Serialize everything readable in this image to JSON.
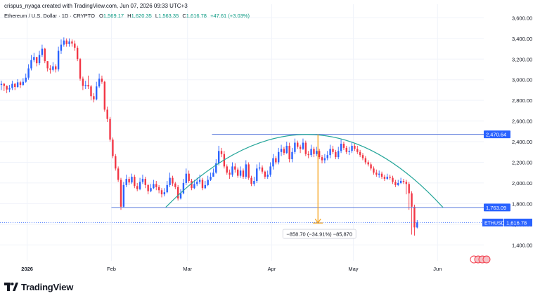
{
  "header": {
    "credit": "crispus_nyaga created with TradingView.com, Jun 07, 2026 09:33 UTC+3",
    "instrument": "Ethereum / U.S. Dollar · 1D · CRYPTO",
    "ohlc": {
      "o_label": "O",
      "open": "1,569.17",
      "h_label": "H",
      "high": "1,620.35",
      "l_label": "L",
      "low": "1,563.35",
      "c_label": "C",
      "close": "1,616.78",
      "change": "+47.61 (+3.03%)"
    }
  },
  "brand": {
    "name": "TradingView"
  },
  "colors": {
    "up": "#2962ff",
    "down": "#f23645",
    "arc": "#26a69a",
    "hline": "#5b7bdc",
    "measure": "#f6a623",
    "ticker_bg": "#2962ff"
  },
  "chart_data": {
    "type": "candlestick",
    "symbol": "ETHUSD",
    "ylim": [
      1300,
      3650
    ],
    "y_ticks": [
      1400,
      1600,
      1800,
      2000,
      2200,
      2400,
      2600,
      2800,
      3000,
      3200,
      3400,
      3600
    ],
    "y_tick_labels": [
      "1,400.00",
      "1,600.00",
      "1,800.00",
      "2,000.00",
      "2,200.00",
      "2,400.00",
      "2,600.00",
      "2,800.00",
      "3,000.00",
      "3,200.00",
      "3,400.00",
      "3,600.00"
    ],
    "x_labels": [
      {
        "date": "2026-01-01",
        "label": "2026"
      },
      {
        "date": "2026-02-01",
        "label": "Feb"
      },
      {
        "date": "2026-03-01",
        "label": "Mar"
      },
      {
        "date": "2026-04-01",
        "label": "Apr"
      },
      {
        "date": "2026-05-01",
        "label": "May"
      },
      {
        "date": "2026-06-01",
        "label": "Jun"
      }
    ],
    "x_range": [
      "2025-12-22",
      "2026-06-18"
    ],
    "first_date": "2025-12-22",
    "closes": [
      2960,
      2940,
      2905,
      2920,
      2960,
      2930,
      2975,
      2950,
      2980,
      3020,
      3110,
      3190,
      3220,
      3160,
      3240,
      3300,
      3180,
      3110,
      3095,
      3130,
      3100,
      3280,
      3340,
      3380,
      3345,
      3370,
      3350,
      3310,
      3200,
      3010,
      2940,
      2950,
      2935,
      2840,
      2810,
      2935,
      3010,
      2980,
      2710,
      2620,
      2420,
      2260,
      2140,
      2030,
      1770,
      1980,
      2040,
      2005,
      2060,
      1970,
      1940,
      2010,
      2040,
      1980,
      1920,
      1950,
      1990,
      1960,
      1930,
      1890,
      1910,
      1980,
      2050,
      1995,
      1960,
      1850,
      1900,
      2000,
      2090,
      2020,
      1950,
      1990,
      2010,
      2030,
      1950,
      1980,
      2030,
      2060,
      2100,
      2190,
      2310,
      2280,
      2160,
      2100,
      2080,
      2160,
      2130,
      2070,
      2120,
      2060,
      2180,
      2050,
      1990,
      2020,
      2140,
      2150,
      2110,
      2060,
      2080,
      2160,
      2240,
      2200,
      2300,
      2330,
      2290,
      2360,
      2230,
      2300,
      2390,
      2350,
      2330,
      2390,
      2280,
      2270,
      2330,
      2280,
      2310,
      2250,
      2220,
      2240,
      2270,
      2330,
      2300,
      2250,
      2310,
      2380,
      2340,
      2300,
      2310,
      2360,
      2330,
      2300,
      2270,
      2240,
      2200,
      2180,
      2140,
      2100,
      2080,
      2090,
      2060,
      2040,
      2060,
      2050,
      2010,
      1980,
      2000,
      2020,
      2010,
      1990,
      1900,
      1770,
      1569,
      1617
    ],
    "highs": [
      2990,
      2970,
      2945,
      2950,
      2990,
      2970,
      3005,
      2990,
      3015,
      3060,
      3150,
      3240,
      3260,
      3220,
      3280,
      3340,
      3310,
      3180,
      3140,
      3170,
      3150,
      3320,
      3390,
      3410,
      3400,
      3400,
      3390,
      3380,
      3330,
      3210,
      3030,
      2990,
      3040,
      2950,
      2870,
      2980,
      3060,
      3040,
      2990,
      2740,
      2640,
      2440,
      2280,
      2160,
      2050,
      2010,
      2080,
      2060,
      2090,
      2080,
      2000,
      2050,
      2080,
      2060,
      1990,
      1990,
      2030,
      2020,
      1980,
      1950,
      1950,
      2020,
      2100,
      2070,
      2010,
      1980,
      1940,
      2040,
      2140,
      2120,
      2040,
      2030,
      2050,
      2080,
      2050,
      2020,
      2070,
      2100,
      2140,
      2230,
      2360,
      2340,
      2310,
      2180,
      2130,
      2200,
      2190,
      2150,
      2160,
      2140,
      2220,
      2200,
      2070,
      2060,
      2180,
      2200,
      2170,
      2120,
      2120,
      2200,
      2280,
      2260,
      2340,
      2370,
      2350,
      2400,
      2390,
      2340,
      2430,
      2410,
      2370,
      2430,
      2410,
      2310,
      2370,
      2350,
      2350,
      2330,
      2270,
      2280,
      2310,
      2370,
      2360,
      2320,
      2350,
      2420,
      2400,
      2360,
      2350,
      2400,
      2380,
      2360,
      2320,
      2290,
      2260,
      2220,
      2200,
      2160,
      2130,
      2120,
      2110,
      2080,
      2090,
      2080,
      2070,
      2030,
      2030,
      2050,
      2040,
      2030,
      2010,
      1920,
      1790,
      1640
    ],
    "lows": [
      2900,
      2890,
      2870,
      2880,
      2900,
      2900,
      2920,
      2920,
      2940,
      2970,
      3000,
      3090,
      3170,
      3130,
      3140,
      3220,
      3160,
      3080,
      3060,
      3080,
      3070,
      3080,
      3250,
      3320,
      3320,
      3320,
      3320,
      3280,
      3180,
      2990,
      2900,
      2910,
      2910,
      2800,
      2780,
      2800,
      2920,
      2960,
      2690,
      2590,
      2400,
      2240,
      2120,
      2010,
      1740,
      1760,
      1960,
      1980,
      1990,
      1950,
      1920,
      1930,
      1990,
      1950,
      1890,
      1910,
      1940,
      1930,
      1900,
      1860,
      1870,
      1900,
      1960,
      1970,
      1940,
      1830,
      1840,
      1890,
      1980,
      2000,
      1930,
      1940,
      1970,
      1990,
      1930,
      1940,
      1970,
      2020,
      2060,
      2090,
      2170,
      2250,
      2140,
      2080,
      2040,
      2060,
      2100,
      2050,
      2050,
      2040,
      2040,
      2030,
      1970,
      1970,
      2000,
      2120,
      2090,
      2040,
      2040,
      2060,
      2130,
      2180,
      2180,
      2260,
      2270,
      2280,
      2200,
      2200,
      2280,
      2330,
      2290,
      2320,
      2260,
      2240,
      2250,
      2250,
      2260,
      2230,
      2190,
      2190,
      2220,
      2240,
      2280,
      2230,
      2230,
      2290,
      2320,
      2280,
      2270,
      2290,
      2310,
      2280,
      2250,
      2220,
      2180,
      2160,
      2120,
      2080,
      2060,
      2050,
      2040,
      2020,
      2030,
      2030,
      1990,
      1960,
      1970,
      1990,
      1990,
      1890,
      1740,
      1500,
      1490,
      1560
    ],
    "last_price": 1616.78,
    "last_price_label": "1,616.78",
    "last_price_tag": "ETHUSD",
    "resistance": {
      "value": 2470.64,
      "label": "2,470.64",
      "start": "2026-03-10"
    },
    "support": {
      "value": 1763.09,
      "label": "1,763.09",
      "start": "2026-02-01"
    },
    "arc": {
      "start_date": "2026-02-21",
      "start_value": 1765,
      "peak_date": "2026-04-14",
      "peak_value": 2470,
      "end_date": "2026-06-03",
      "end_value": 1763
    },
    "measure": {
      "date": "2026-04-18",
      "from": 2470.64,
      "to": 1611.94,
      "label": "−858.70 (−34.91%) −85,870"
    }
  }
}
